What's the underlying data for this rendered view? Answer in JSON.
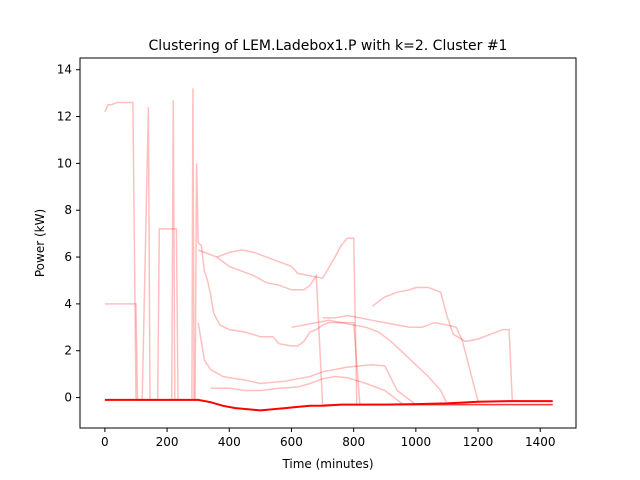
{
  "chart_data": {
    "type": "line",
    "title": "Clustering of LEM.Ladebox1.P with k=2. Cluster #1",
    "xlabel": "Time (minutes)",
    "ylabel": "Power (kW)",
    "xlim": [
      -80,
      1515
    ],
    "ylim": [
      -1.3,
      14.5
    ],
    "xticks": [
      0,
      200,
      400,
      600,
      800,
      1000,
      1200,
      1400
    ],
    "yticks": [
      0,
      2,
      4,
      6,
      8,
      10,
      12,
      14
    ],
    "grid": false,
    "legend": "none",
    "colors": {
      "series": "#ff0000",
      "frame": "#000000",
      "background": "#ffffff"
    },
    "series": [
      {
        "role": "centroid",
        "points": [
          [
            0,
            -0.1
          ],
          [
            120,
            -0.1
          ],
          [
            160,
            -0.1
          ],
          [
            200,
            -0.1
          ],
          [
            260,
            -0.1
          ],
          [
            300,
            -0.1
          ],
          [
            340,
            -0.2
          ],
          [
            380,
            -0.35
          ],
          [
            420,
            -0.45
          ],
          [
            460,
            -0.5
          ],
          [
            500,
            -0.55
          ],
          [
            540,
            -0.5
          ],
          [
            580,
            -0.45
          ],
          [
            620,
            -0.4
          ],
          [
            660,
            -0.35
          ],
          [
            700,
            -0.35
          ],
          [
            760,
            -0.3
          ],
          [
            820,
            -0.3
          ],
          [
            900,
            -0.3
          ],
          [
            1000,
            -0.28
          ],
          [
            1100,
            -0.25
          ],
          [
            1200,
            -0.18
          ],
          [
            1300,
            -0.15
          ],
          [
            1440,
            -0.15
          ]
        ]
      },
      {
        "role": "member",
        "points": [
          [
            300,
            6.6
          ],
          [
            310,
            6.5
          ],
          [
            320,
            5.4
          ],
          [
            330,
            5.0
          ],
          [
            340,
            4.4
          ],
          [
            350,
            3.6
          ],
          [
            370,
            3.1
          ],
          [
            400,
            2.9
          ],
          [
            450,
            2.8
          ],
          [
            500,
            2.6
          ],
          [
            540,
            2.6
          ],
          [
            560,
            2.3
          ],
          [
            600,
            2.2
          ],
          [
            620,
            2.2
          ],
          [
            640,
            2.4
          ],
          [
            660,
            2.8
          ],
          [
            680,
            2.9
          ],
          [
            700,
            3.1
          ],
          [
            720,
            3.2
          ],
          [
            760,
            3.2
          ],
          [
            800,
            3.2
          ],
          [
            820,
            -0.3
          ],
          [
            1440,
            -0.3
          ]
        ]
      },
      {
        "role": "member",
        "points": [
          [
            300,
            3.2
          ],
          [
            320,
            1.6
          ],
          [
            340,
            1.2
          ],
          [
            380,
            0.9
          ],
          [
            400,
            0.85
          ],
          [
            450,
            0.75
          ],
          [
            500,
            0.6
          ],
          [
            540,
            0.65
          ],
          [
            580,
            0.7
          ],
          [
            620,
            0.8
          ],
          [
            660,
            0.9
          ],
          [
            700,
            1.1
          ],
          [
            740,
            1.2
          ],
          [
            780,
            1.3
          ],
          [
            820,
            1.35
          ],
          [
            860,
            1.4
          ],
          [
            900,
            1.35
          ],
          [
            940,
            0.3
          ],
          [
            1000,
            -0.3
          ],
          [
            1440,
            -0.3
          ]
        ]
      },
      {
        "role": "member",
        "points": [
          [
            340,
            0.4
          ],
          [
            400,
            0.4
          ],
          [
            450,
            0.3
          ],
          [
            500,
            0.3
          ],
          [
            560,
            0.4
          ],
          [
            620,
            0.45
          ],
          [
            660,
            0.6
          ],
          [
            700,
            0.8
          ],
          [
            740,
            0.9
          ],
          [
            780,
            0.85
          ],
          [
            840,
            0.6
          ],
          [
            900,
            0.3
          ],
          [
            960,
            -0.3
          ],
          [
            1440,
            -0.3
          ]
        ]
      },
      {
        "role": "member",
        "points": [
          [
            0,
            12.2
          ],
          [
            10,
            12.5
          ],
          [
            20,
            12.5
          ],
          [
            40,
            12.6
          ],
          [
            90,
            12.6
          ],
          [
            100,
            -0.1
          ],
          [
            120,
            -0.1
          ],
          [
            140,
            12.4
          ],
          [
            145,
            -0.1
          ],
          [
            215,
            -0.1
          ],
          [
            220,
            12.7
          ],
          [
            225,
            -0.1
          ],
          [
            280,
            -0.1
          ],
          [
            283,
            13.2
          ],
          [
            287,
            -0.1
          ],
          [
            300,
            -0.1
          ]
        ]
      },
      {
        "role": "member",
        "points": [
          [
            0,
            4.0
          ],
          [
            10,
            4.0
          ],
          [
            60,
            4.0
          ],
          [
            100,
            4.0
          ],
          [
            105,
            -0.1
          ],
          [
            170,
            -0.1
          ],
          [
            175,
            7.2
          ],
          [
            230,
            7.2
          ],
          [
            235,
            -0.1
          ],
          [
            290,
            -0.1
          ],
          [
            295,
            10.0
          ],
          [
            300,
            6.6
          ]
        ]
      },
      {
        "role": "member",
        "points": [
          [
            360,
            6.0
          ],
          [
            400,
            6.2
          ],
          [
            440,
            6.3
          ],
          [
            480,
            6.2
          ],
          [
            520,
            6.0
          ],
          [
            560,
            5.8
          ],
          [
            600,
            5.6
          ],
          [
            620,
            5.3
          ],
          [
            660,
            5.2
          ],
          [
            700,
            5.1
          ],
          [
            740,
            6.0
          ],
          [
            760,
            6.5
          ],
          [
            780,
            6.8
          ],
          [
            800,
            6.8
          ],
          [
            810,
            -0.3
          ],
          [
            1440,
            -0.3
          ]
        ]
      },
      {
        "role": "member",
        "points": [
          [
            300,
            6.3
          ],
          [
            360,
            6.0
          ],
          [
            400,
            5.6
          ],
          [
            440,
            5.4
          ],
          [
            480,
            5.2
          ],
          [
            520,
            4.9
          ],
          [
            560,
            4.8
          ],
          [
            600,
            4.6
          ],
          [
            640,
            4.6
          ],
          [
            660,
            4.8
          ],
          [
            680,
            5.2
          ],
          [
            700,
            -0.3
          ],
          [
            1440,
            -0.3
          ]
        ]
      },
      {
        "role": "member",
        "points": [
          [
            860,
            3.9
          ],
          [
            900,
            4.3
          ],
          [
            940,
            4.5
          ],
          [
            980,
            4.6
          ],
          [
            1000,
            4.7
          ],
          [
            1040,
            4.7
          ],
          [
            1060,
            4.6
          ],
          [
            1080,
            4.5
          ],
          [
            1100,
            3.5
          ],
          [
            1120,
            2.7
          ],
          [
            1160,
            2.4
          ],
          [
            1200,
            2.5
          ],
          [
            1240,
            2.7
          ],
          [
            1280,
            2.9
          ],
          [
            1300,
            2.9
          ],
          [
            1310,
            -0.15
          ]
        ]
      },
      {
        "role": "member",
        "points": [
          [
            700,
            3.4
          ],
          [
            740,
            3.4
          ],
          [
            780,
            3.5
          ],
          [
            820,
            3.4
          ],
          [
            860,
            3.3
          ],
          [
            900,
            3.2
          ],
          [
            940,
            3.1
          ],
          [
            980,
            3.0
          ],
          [
            1020,
            3.0
          ],
          [
            1060,
            3.2
          ],
          [
            1100,
            3.1
          ],
          [
            1130,
            3.0
          ],
          [
            1150,
            2.4
          ],
          [
            1200,
            -0.15
          ]
        ]
      },
      {
        "role": "member",
        "points": [
          [
            600,
            3.0
          ],
          [
            640,
            3.1
          ],
          [
            680,
            3.2
          ],
          [
            720,
            3.3
          ],
          [
            760,
            3.2
          ],
          [
            800,
            3.1
          ],
          [
            840,
            3.0
          ],
          [
            880,
            2.8
          ],
          [
            920,
            2.4
          ],
          [
            960,
            1.9
          ],
          [
            1000,
            1.4
          ],
          [
            1040,
            0.9
          ],
          [
            1080,
            0.3
          ],
          [
            1100,
            -0.25
          ]
        ]
      }
    ]
  }
}
